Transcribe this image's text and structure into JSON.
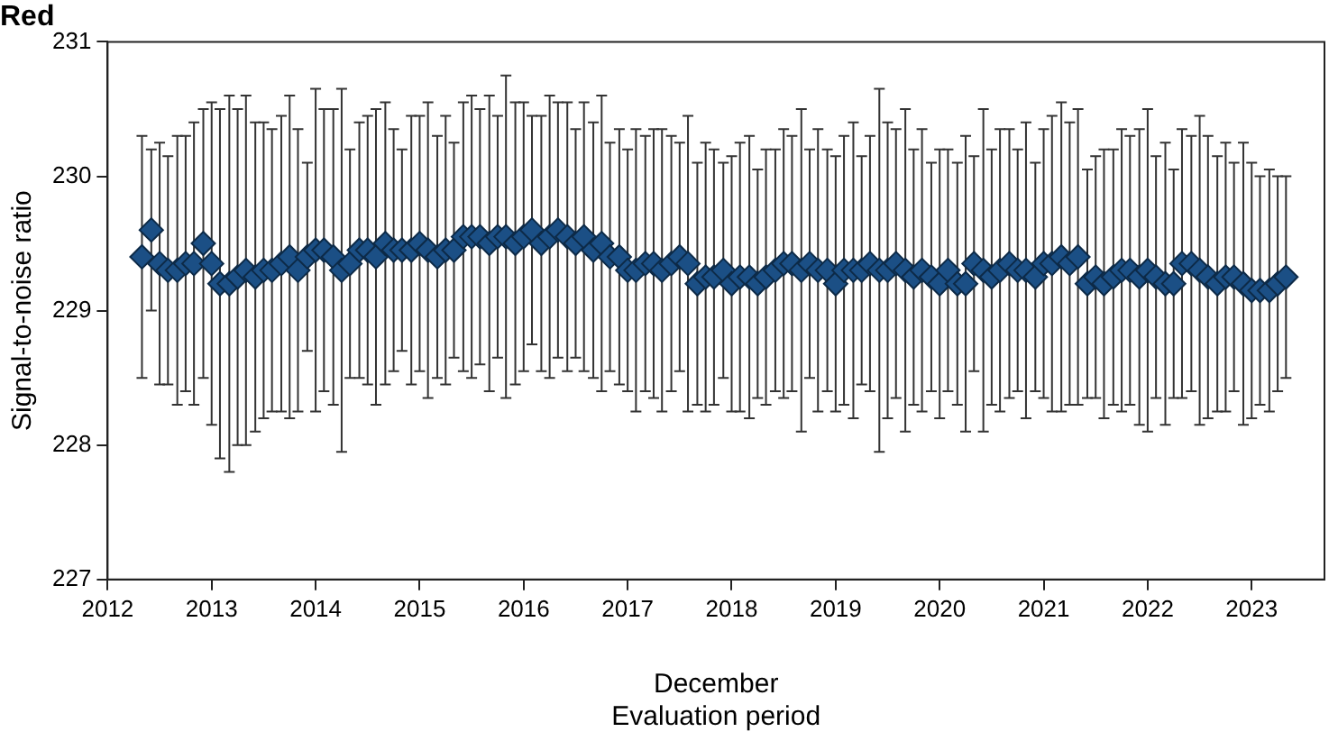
{
  "chart_data": {
    "type": "scatter",
    "title": "Red",
    "xlabel": "December\nEvaluation period",
    "ylabel": "Signal-to-noise ratio",
    "xlim": [
      2012,
      2023.7
    ],
    "xticks": [
      2012,
      2013,
      2014,
      2015,
      2016,
      2017,
      2018,
      2019,
      2020,
      2021,
      2022,
      2023
    ],
    "ylim": [
      227,
      231
    ],
    "yticks": [
      227,
      228,
      229,
      230,
      231
    ],
    "grid": false,
    "legend": false,
    "marker": "diamond",
    "series": [
      {
        "color": "#1b4f85",
        "x": [
          2012.33,
          2012.42,
          2012.5,
          2012.58,
          2012.67,
          2012.75,
          2012.83,
          2012.92,
          2013.0,
          2013.08,
          2013.17,
          2013.25,
          2013.33,
          2013.42,
          2013.5,
          2013.58,
          2013.67,
          2013.75,
          2013.83,
          2013.92,
          2014.0,
          2014.08,
          2014.17,
          2014.25,
          2014.33,
          2014.42,
          2014.5,
          2014.58,
          2014.67,
          2014.75,
          2014.83,
          2014.92,
          2015.0,
          2015.08,
          2015.17,
          2015.25,
          2015.33,
          2015.42,
          2015.5,
          2015.58,
          2015.67,
          2015.75,
          2015.83,
          2015.92,
          2016.0,
          2016.08,
          2016.17,
          2016.25,
          2016.33,
          2016.42,
          2016.5,
          2016.58,
          2016.67,
          2016.75,
          2016.83,
          2016.92,
          2017.0,
          2017.08,
          2017.17,
          2017.25,
          2017.33,
          2017.42,
          2017.5,
          2017.58,
          2017.67,
          2017.75,
          2017.83,
          2017.92,
          2018.0,
          2018.08,
          2018.17,
          2018.25,
          2018.33,
          2018.42,
          2018.5,
          2018.58,
          2018.67,
          2018.75,
          2018.83,
          2018.92,
          2019.0,
          2019.08,
          2019.17,
          2019.25,
          2019.33,
          2019.42,
          2019.5,
          2019.58,
          2019.67,
          2019.75,
          2019.83,
          2019.92,
          2020.0,
          2020.08,
          2020.17,
          2020.25,
          2020.33,
          2020.42,
          2020.5,
          2020.58,
          2020.67,
          2020.75,
          2020.83,
          2020.92,
          2021.0,
          2021.08,
          2021.17,
          2021.25,
          2021.33,
          2021.42,
          2021.5,
          2021.58,
          2021.67,
          2021.75,
          2021.83,
          2021.92,
          2022.0,
          2022.08,
          2022.17,
          2022.25,
          2022.33,
          2022.42,
          2022.5,
          2022.58,
          2022.67,
          2022.75,
          2022.83,
          2022.92,
          2023.0,
          2023.08,
          2023.17,
          2023.25,
          2023.33
        ],
        "values": [
          229.4,
          229.6,
          229.35,
          229.3,
          229.3,
          229.35,
          229.35,
          229.5,
          229.35,
          229.2,
          229.2,
          229.25,
          229.3,
          229.25,
          229.3,
          229.3,
          229.35,
          229.4,
          229.3,
          229.4,
          229.45,
          229.45,
          229.4,
          229.3,
          229.35,
          229.45,
          229.45,
          229.4,
          229.5,
          229.45,
          229.45,
          229.45,
          229.5,
          229.45,
          229.4,
          229.45,
          229.45,
          229.55,
          229.55,
          229.55,
          229.5,
          229.55,
          229.55,
          229.5,
          229.55,
          229.6,
          229.5,
          229.55,
          229.6,
          229.55,
          229.5,
          229.55,
          229.45,
          229.5,
          229.4,
          229.4,
          229.3,
          229.3,
          229.35,
          229.35,
          229.3,
          229.35,
          229.4,
          229.35,
          229.2,
          229.25,
          229.25,
          229.3,
          229.2,
          229.25,
          229.25,
          229.2,
          229.25,
          229.3,
          229.35,
          229.35,
          229.3,
          229.35,
          229.3,
          229.3,
          229.2,
          229.3,
          229.3,
          229.3,
          229.35,
          229.3,
          229.3,
          229.35,
          229.3,
          229.25,
          229.3,
          229.25,
          229.2,
          229.3,
          229.2,
          229.2,
          229.35,
          229.3,
          229.25,
          229.3,
          229.35,
          229.3,
          229.3,
          229.25,
          229.35,
          229.35,
          229.4,
          229.35,
          229.4,
          229.2,
          229.25,
          229.2,
          229.25,
          229.3,
          229.3,
          229.25,
          229.3,
          229.25,
          229.2,
          229.2,
          229.35,
          229.35,
          229.3,
          229.25,
          229.2,
          229.25,
          229.25,
          229.2,
          229.15,
          229.15,
          229.15,
          229.2,
          229.25
        ],
        "errors": [
          0.9,
          0.6,
          0.9,
          0.85,
          1.0,
          0.95,
          1.05,
          1.0,
          1.2,
          1.3,
          1.4,
          1.25,
          1.3,
          1.15,
          1.1,
          1.05,
          1.1,
          1.2,
          1.05,
          0.7,
          1.2,
          1.05,
          1.1,
          1.35,
          0.85,
          0.95,
          1.0,
          1.1,
          1.05,
          0.9,
          0.75,
          1.0,
          0.95,
          1.1,
          0.9,
          1.0,
          0.8,
          1.0,
          1.05,
          0.95,
          1.1,
          0.9,
          1.2,
          1.05,
          1.0,
          0.85,
          0.95,
          1.05,
          0.95,
          1.0,
          0.85,
          1.0,
          0.95,
          1.1,
          0.85,
          0.95,
          0.9,
          1.05,
          0.95,
          1.0,
          1.05,
          0.95,
          0.85,
          1.1,
          0.9,
          1.0,
          0.95,
          0.8,
          0.95,
          1.0,
          1.05,
          0.85,
          0.95,
          0.9,
          1.0,
          0.95,
          1.2,
          0.85,
          1.05,
          0.9,
          0.95,
          1.0,
          1.1,
          0.85,
          0.95,
          1.35,
          1.1,
          1.0,
          1.2,
          0.95,
          1.05,
          0.85,
          1.0,
          0.9,
          0.9,
          1.1,
          0.8,
          1.2,
          0.95,
          1.05,
          1.0,
          0.9,
          1.1,
          0.85,
          1.0,
          1.1,
          1.15,
          1.05,
          1.1,
          0.85,
          0.9,
          1.0,
          0.95,
          1.05,
          1.0,
          1.1,
          1.2,
          0.9,
          1.05,
          0.85,
          1.0,
          0.95,
          1.15,
          1.05,
          0.95,
          1.0,
          0.85,
          1.05,
          0.95,
          0.85,
          0.9,
          0.8,
          0.75
        ]
      }
    ]
  }
}
